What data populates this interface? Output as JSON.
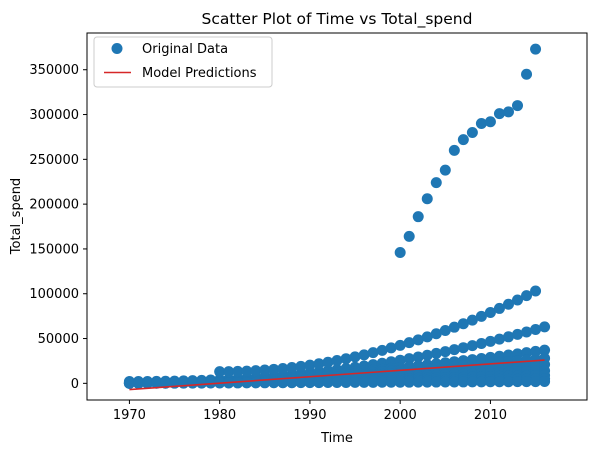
{
  "chart_data": {
    "type": "scatter",
    "title": "Scatter Plot of Time vs Total_spend",
    "xlabel": "Time",
    "ylabel": "Total_spend",
    "xlim": [
      1965.3,
      2020.7
    ],
    "ylim": [
      -18600,
      391000
    ],
    "xticks": [
      1970,
      1980,
      1990,
      2000,
      2010
    ],
    "yticks": [
      0,
      50000,
      100000,
      150000,
      200000,
      250000,
      300000,
      350000
    ],
    "grid": false,
    "legend_position": "top-left",
    "colors": {
      "points": "#1f77b4",
      "line": "#d62728"
    },
    "legend": [
      "Original Data",
      "Model Predictions"
    ],
    "series": [
      {
        "kind": "scatter",
        "points": [
          [
            2000,
            146000
          ],
          [
            2001,
            164000
          ],
          [
            2002,
            186000
          ],
          [
            2003,
            206000
          ],
          [
            2004,
            224000
          ],
          [
            2005,
            238000
          ],
          [
            2006,
            260000
          ],
          [
            2007,
            272000
          ],
          [
            2008,
            280000
          ],
          [
            2009,
            290000
          ],
          [
            2010,
            292000
          ],
          [
            2011,
            301000
          ],
          [
            2012,
            303000
          ],
          [
            2013,
            310000
          ],
          [
            2014,
            345000
          ],
          [
            2015,
            373000
          ]
        ],
        "bands": [
          {
            "y1970": 2000,
            "y2016": 63000,
            "growth": 2.2
          },
          {
            "y1970": 1000,
            "y2016": 37000,
            "growth": 1.8
          },
          {
            "y1970": 500,
            "y2016": 28000,
            "growth": 1.6
          },
          {
            "y1970": 300,
            "y2016": 21000,
            "growth": 1.5
          },
          {
            "y1970": 200,
            "y2016": 14000,
            "growth": 1.4
          },
          {
            "y1970": 100,
            "y2016": 9000,
            "growth": 1.3
          },
          {
            "y1970": 0,
            "y2016": 5000,
            "growth": 1.2
          },
          {
            "y1970": 0,
            "y2016": 2000,
            "growth": 1.1
          }
        ],
        "high_band": {
          "start_year": 1980,
          "end_year": 2015,
          "y_start": 13000,
          "y_end": 103000,
          "growth": 2.0
        },
        "year_range": [
          1970,
          2016
        ]
      },
      {
        "kind": "line",
        "points": [
          [
            1970,
            -7000
          ],
          [
            2016,
            26000
          ]
        ]
      }
    ]
  }
}
